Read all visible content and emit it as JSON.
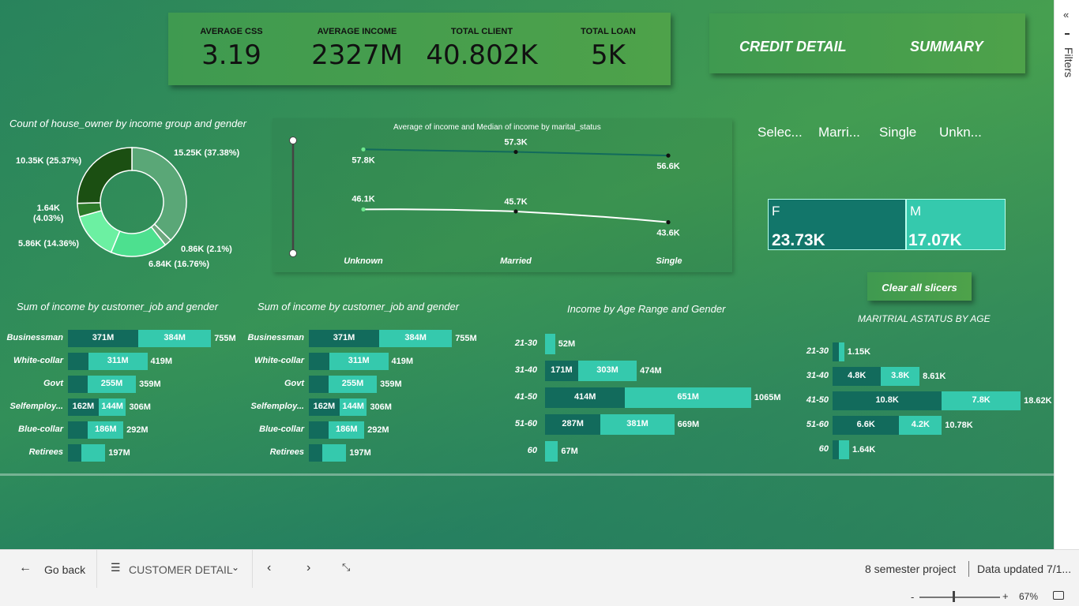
{
  "kpis": [
    {
      "label": "AVERAGE CSS",
      "value": "3.19"
    },
    {
      "label": "AVERAGE INCOME",
      "value": "2327M"
    },
    {
      "label": "TOTAL CLIENT",
      "value": "40.802K"
    },
    {
      "label": "TOTAL LOAN",
      "value": "5K"
    }
  ],
  "nav": {
    "credit_detail": "CREDIT DETAIL",
    "summary": "SUMMARY"
  },
  "donut": {
    "title": "Count of house_owner by income group and gender",
    "slices": [
      {
        "label": "15.25K (37.38%)",
        "value": 15.25,
        "color": "#5aa777"
      },
      {
        "label": "0.86K (2.1%)",
        "value": 0.86,
        "color": "#6ea87f"
      },
      {
        "label": "6.84K (16.76%)",
        "value": 6.84,
        "color": "#4de08f"
      },
      {
        "label": "5.86K (14.36%)",
        "value": 5.86,
        "color": "#6cf0a2"
      },
      {
        "label": "1.64K\n(4.03%)",
        "value": 1.64,
        "color": "#2d7a2a"
      },
      {
        "label": "10.35K (25.37%)",
        "value": 10.35,
        "color": "#1b4f12"
      }
    ]
  },
  "line_chart": {
    "title": "Average of income and Median of income by marital_status",
    "categories": [
      "Unknown",
      "Married",
      "Single"
    ],
    "series": [
      {
        "values": [
          57.8,
          57.3,
          56.6
        ],
        "labels": [
          "57.8K",
          "57.3K",
          "56.6K"
        ],
        "color": "#126b5c"
      },
      {
        "values": [
          46.1,
          45.7,
          43.6
        ],
        "labels": [
          "46.1K",
          "45.7K",
          "43.6K"
        ],
        "color": "#ffffff"
      }
    ]
  },
  "slicer": {
    "items": [
      "Selec...",
      "Marri...",
      "Single",
      "Unkn..."
    ]
  },
  "gender_cards": [
    {
      "letter": "F",
      "value": "23.73K",
      "color": "#12766a"
    },
    {
      "letter": "M",
      "value": "17.07K",
      "color": "#35c9ad"
    }
  ],
  "clear_slicers": "Clear all slicers",
  "job_chart_1": {
    "title": "Sum of income by customer_job and gender",
    "rows": [
      {
        "cat": "Businessman",
        "dark": 371,
        "light": 384,
        "dark_label": "371M",
        "light_label": "384M",
        "total": "755M"
      },
      {
        "cat": "White-collar",
        "dark": 108,
        "light": 311,
        "dark_label": "",
        "light_label": "311M",
        "total": "419M"
      },
      {
        "cat": "Govt",
        "dark": 104,
        "light": 255,
        "dark_label": "",
        "light_label": "255M",
        "total": "359M"
      },
      {
        "cat": "Selfemploy...",
        "dark": 162,
        "light": 144,
        "dark_label": "162M",
        "light_label": "144M",
        "total": "306M"
      },
      {
        "cat": "Blue-collar",
        "dark": 106,
        "light": 186,
        "dark_label": "",
        "light_label": "186M",
        "total": "292M"
      },
      {
        "cat": "Retirees",
        "dark": 70,
        "light": 127,
        "dark_label": "",
        "light_label": "",
        "total": "197M"
      }
    ]
  },
  "job_chart_2": {
    "title": "Sum of income by customer_job and gender",
    "rows": [
      {
        "cat": "Businessman",
        "dark": 371,
        "light": 384,
        "dark_label": "371M",
        "light_label": "384M",
        "total": "755M"
      },
      {
        "cat": "White-collar",
        "dark": 108,
        "light": 311,
        "dark_label": "",
        "light_label": "311M",
        "total": "419M"
      },
      {
        "cat": "Govt",
        "dark": 104,
        "light": 255,
        "dark_label": "",
        "light_label": "255M",
        "total": "359M"
      },
      {
        "cat": "Selfemploy...",
        "dark": 162,
        "light": 144,
        "dark_label": "162M",
        "light_label": "144M",
        "total": "306M"
      },
      {
        "cat": "Blue-collar",
        "dark": 106,
        "light": 186,
        "dark_label": "",
        "light_label": "186M",
        "total": "292M"
      },
      {
        "cat": "Retirees",
        "dark": 70,
        "light": 127,
        "dark_label": "",
        "light_label": "",
        "total": "197M"
      }
    ]
  },
  "age_chart": {
    "title": "Income by Age Range and Gender",
    "rows": [
      {
        "cat": "21-30",
        "dark": 0,
        "light": 52,
        "dark_label": "",
        "light_label": "",
        "total": "52M"
      },
      {
        "cat": "31-40",
        "dark": 171,
        "light": 303,
        "dark_label": "171M",
        "light_label": "303M",
        "total": "474M"
      },
      {
        "cat": "41-50",
        "dark": 414,
        "light": 651,
        "dark_label": "414M",
        "light_label": "651M",
        "total": "1065M"
      },
      {
        "cat": "51-60",
        "dark": 287,
        "light": 381,
        "dark_label": "287M",
        "light_label": "381M",
        "total": "669M"
      },
      {
        "cat": "60",
        "dark": 0,
        "light": 67,
        "dark_label": "",
        "light_label": "",
        "total": "67M"
      }
    ]
  },
  "marital_age_chart": {
    "title": "MARITRIAL ASTATUS BY AGE",
    "rows": [
      {
        "cat": "21-30",
        "dark": 0.6,
        "light": 0.55,
        "dark_label": "",
        "light_label": "",
        "total": "1.15K"
      },
      {
        "cat": "31-40",
        "dark": 4.8,
        "light": 3.8,
        "dark_label": "4.8K",
        "light_label": "3.8K",
        "total": "8.61K"
      },
      {
        "cat": "41-50",
        "dark": 10.8,
        "light": 7.8,
        "dark_label": "10.8K",
        "light_label": "7.8K",
        "total": "18.62K"
      },
      {
        "cat": "51-60",
        "dark": 6.6,
        "light": 4.2,
        "dark_label": "6.6K",
        "light_label": "4.2K",
        "total": "10.78K"
      },
      {
        "cat": "60",
        "dark": 0.6,
        "light": 1.04,
        "dark_label": "",
        "light_label": "",
        "total": "1.64K"
      }
    ]
  },
  "filters_label": "Filters",
  "bottom": {
    "go_back": "Go back",
    "page_name": "CUSTOMER DETAIL",
    "project": "8 semester project",
    "updated": "Data updated 7/1...",
    "zoom": "67%",
    "zoom_level": 0.42
  }
}
